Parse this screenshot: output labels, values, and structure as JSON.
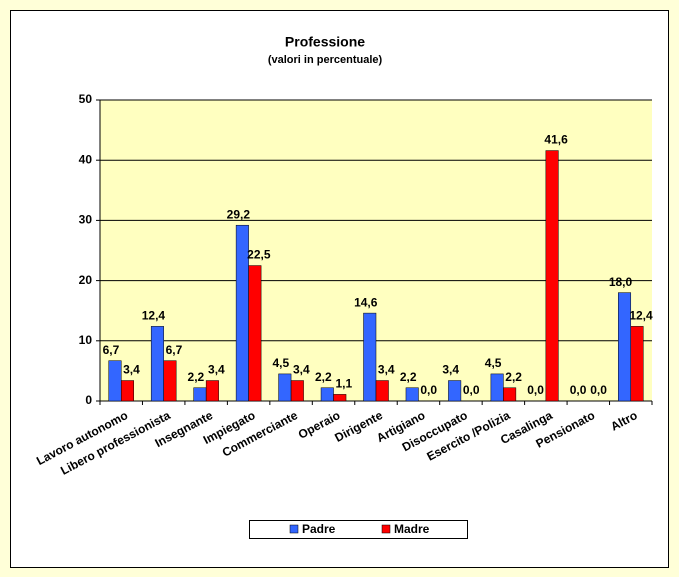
{
  "chart_data": {
    "type": "bar",
    "title": "Professione",
    "subtitle": "(valori in percentuale)",
    "categories": [
      "Lavoro autonomo",
      "Libero professionista",
      "Insegnante",
      "Impiegato",
      "Commerciante",
      "Operaio",
      "Dirigente",
      "Artigiano",
      "Disoccupato",
      "Esercito /Polizia",
      "Casalinga",
      "Pensionato",
      "Altro"
    ],
    "series": [
      {
        "name": "Padre",
        "color": "#3366ff",
        "values": [
          6.7,
          12.4,
          2.2,
          29.2,
          4.5,
          2.2,
          14.6,
          2.2,
          3.4,
          4.5,
          0.0,
          0.0,
          18.0
        ],
        "value_labels": [
          "6,7",
          "12,4",
          "2,2",
          "29,2",
          "4,5",
          "2,2",
          "14,6",
          "2,2",
          "3,4",
          "4,5",
          "0,0",
          "0,0",
          "18,0"
        ]
      },
      {
        "name": "Madre",
        "color": "#ff0000",
        "values": [
          3.4,
          6.7,
          3.4,
          22.5,
          3.4,
          1.1,
          3.4,
          0.0,
          0.0,
          2.2,
          41.6,
          0.0,
          12.4
        ],
        "value_labels": [
          "3,4",
          "6,7",
          "3,4",
          "22,5",
          "3,4",
          "1,1",
          "3,4",
          "0,0",
          "0,0",
          "2,2",
          "41,6",
          "0,0",
          "12,4"
        ]
      }
    ],
    "ylim": [
      0,
      50
    ],
    "yticks": [
      0,
      10,
      20,
      30,
      40,
      50
    ],
    "grid": true,
    "legend": "bottom"
  }
}
